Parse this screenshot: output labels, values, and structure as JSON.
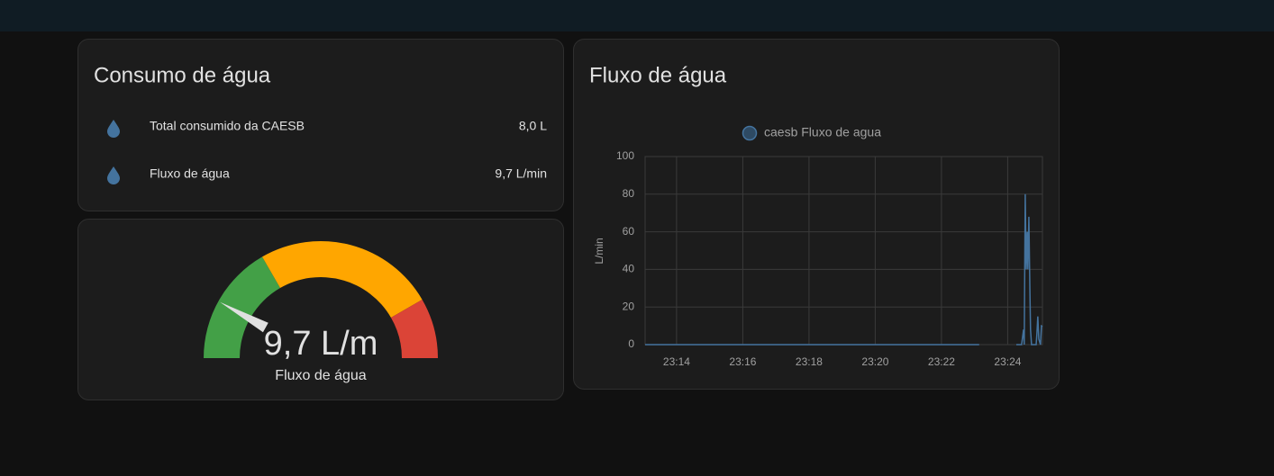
{
  "entities_card": {
    "title": "Consumo de água",
    "rows": [
      {
        "name": "Total consumido da CAESB",
        "state": "8,0 L"
      },
      {
        "name": "Fluxo de água",
        "state": "9,7 L/min"
      }
    ]
  },
  "gauge_card": {
    "type": "gauge",
    "name": "Fluxo de água",
    "value": 9.7,
    "value_label": "9,7 L/m",
    "min": 0,
    "max": 60,
    "segments": [
      {
        "from": 0,
        "color": "#43a047"
      },
      {
        "from": 20,
        "color": "#ffa600"
      },
      {
        "from": 50,
        "color": "#db4437"
      }
    ],
    "needle_color": "#e0e0e0"
  },
  "chart_data": {
    "type": "line",
    "title": "Fluxo de água",
    "y_label": "L/min",
    "x": [
      1393.05,
      1403.14,
      1403.2,
      1404.26,
      1404.42,
      1404.48,
      1404.5,
      1404.53,
      1404.56,
      1404.59,
      1404.61,
      1404.64,
      1404.67,
      1404.69,
      1404.72,
      1404.86,
      1404.88,
      1404.91,
      1404.94,
      1404.99,
      1405.02,
      1405.05
    ],
    "series": [
      {
        "name": "caesb Fluxo de agua",
        "color": "#44739e",
        "values": [
          0,
          0,
          null,
          0,
          0,
          8,
          0,
          80,
          40,
          60,
          40,
          68,
          30,
          8,
          0,
          0,
          5,
          15,
          3,
          0,
          10,
          9.7
        ]
      }
    ],
    "xlim": [
      1393.05,
      1405.05
    ],
    "xticks": [
      {
        "value": 1394,
        "label": "23:14"
      },
      {
        "value": 1396,
        "label": "23:16"
      },
      {
        "value": 1398,
        "label": "23:18"
      },
      {
        "value": 1400,
        "label": "23:20"
      },
      {
        "value": 1402,
        "label": "23:22"
      },
      {
        "value": 1404,
        "label": "23:24"
      }
    ],
    "ylim": [
      0,
      100
    ],
    "yticks": [
      0,
      20,
      40,
      60,
      80,
      100
    ],
    "grid": true,
    "legend": "top"
  }
}
